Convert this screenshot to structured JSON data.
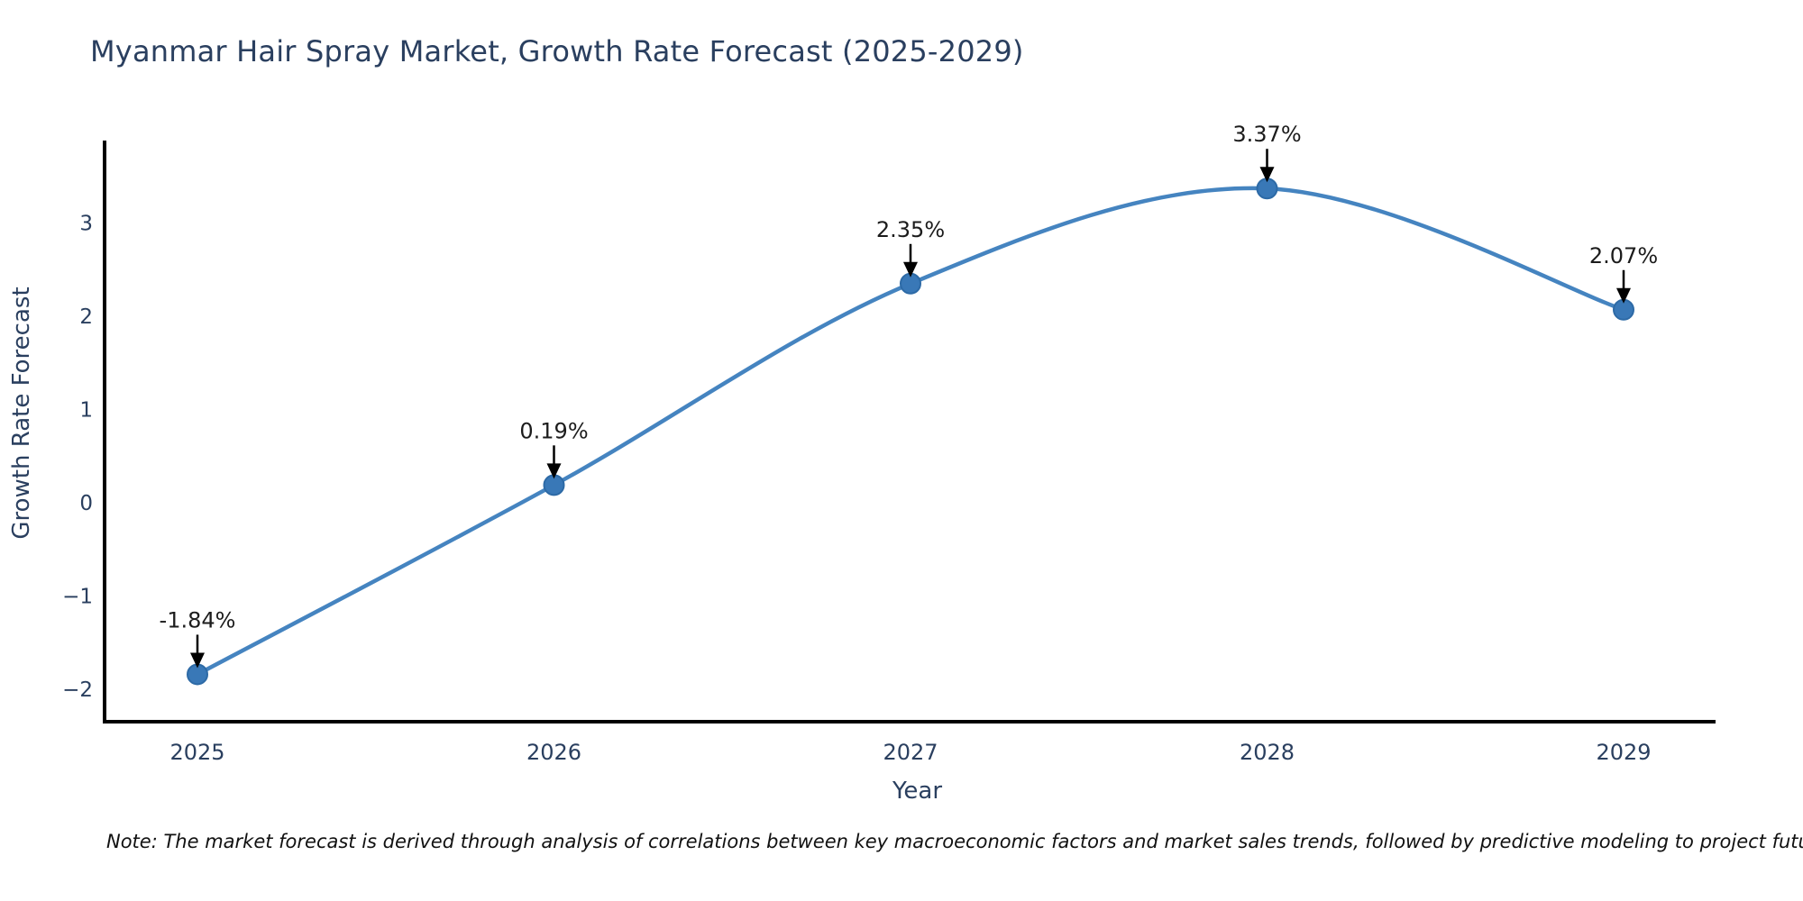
{
  "title": "Myanmar Hair Spray Market, Growth Rate Forecast (2025-2029)",
  "note": "Note: The market forecast is derived through analysis of correlations between key macroeconomic factors and market sales trends, followed by predictive modeling to project future sales",
  "chart_data": {
    "type": "line",
    "title": "Myanmar Hair Spray Market, Growth Rate Forecast (2025-2029)",
    "xlabel": "Year",
    "ylabel": "Growth Rate Forecast",
    "x": [
      2025,
      2026,
      2027,
      2028,
      2029
    ],
    "values": [
      -1.84,
      0.19,
      2.35,
      3.37,
      2.07
    ],
    "point_labels": [
      "-1.84%",
      "0.19%",
      "2.35%",
      "3.37%",
      "2.07%"
    ],
    "xtick_labels": [
      "2025",
      "2026",
      "2027",
      "2028",
      "2029"
    ],
    "ytick_values": [
      -2,
      -1,
      0,
      1,
      2,
      3
    ],
    "ytick_labels": [
      "−2",
      "−1",
      "0",
      "1",
      "2",
      "3"
    ],
    "ylim": [
      -2.35,
      3.88
    ],
    "xlim": [
      2024.74,
      2029.26
    ],
    "grid": false,
    "legend": "none",
    "curve": "spline",
    "colors": {
      "line": "#4584c0",
      "marker_fill": "#3978b7",
      "marker_edge": "#2d6aa6",
      "axis": "#000000",
      "tick_text": "#2a3f5f",
      "axis_label_text": "#2a3f5f",
      "title_text": "#2a3f5f",
      "annotation_text": "#1c1c1c",
      "annotation_arrow": "#000000"
    }
  }
}
